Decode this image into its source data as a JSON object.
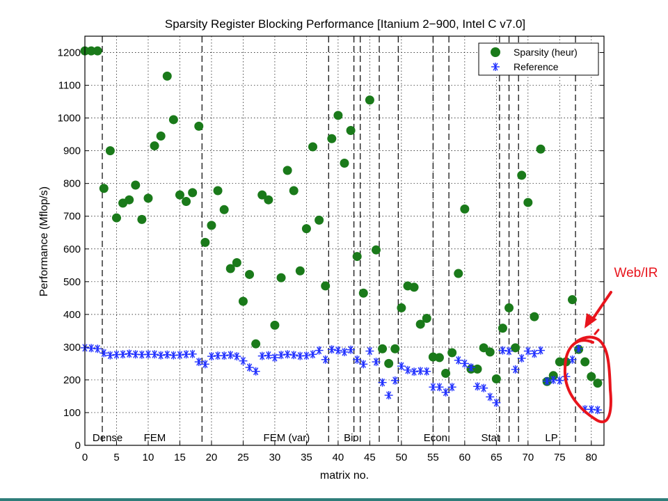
{
  "chart_data": {
    "type": "scatter",
    "title": "Sparsity Register Blocking Performance [Itanium 2−900, Intel C v7.0]",
    "xlabel": "matrix no.",
    "ylabel": "Performance (Mflop/s)",
    "xlim": [
      0,
      82
    ],
    "ylim": [
      0,
      1250
    ],
    "xticks": [
      0,
      5,
      10,
      15,
      20,
      25,
      30,
      35,
      40,
      45,
      50,
      55,
      60,
      65,
      70,
      75,
      80
    ],
    "yticks": [
      0,
      100,
      200,
      300,
      400,
      500,
      600,
      700,
      800,
      900,
      1000,
      1100,
      1200
    ],
    "grid": true,
    "legend_position": "top-right",
    "colors": {
      "sparsity": "#1a7a1a",
      "reference": "#1f2fff",
      "annotation": "#e8141c"
    },
    "series": [
      {
        "name": "Sparsity (heur)",
        "marker": "circle",
        "x": [
          0,
          1,
          2,
          3,
          4,
          5,
          6,
          7,
          8,
          9,
          10,
          11,
          12,
          13,
          14,
          15,
          16,
          17,
          18,
          19,
          20,
          21,
          22,
          23,
          24,
          25,
          26,
          27,
          28,
          29,
          30,
          31,
          32,
          33,
          34,
          35,
          36,
          37,
          38,
          39,
          40,
          41,
          42,
          43,
          44,
          45,
          46,
          47,
          48,
          49,
          50,
          51,
          52,
          53,
          54,
          55,
          56,
          57,
          58,
          59,
          60,
          61,
          62,
          63,
          64,
          65,
          66,
          67,
          68,
          69,
          70,
          71,
          72,
          73,
          74,
          75,
          76,
          77,
          78,
          79,
          80,
          81
        ],
        "values": [
          1205,
          1205,
          1205,
          785,
          900,
          695,
          740,
          750,
          795,
          690,
          755,
          915,
          945,
          1128,
          995,
          765,
          745,
          772,
          975,
          620,
          672,
          778,
          720,
          540,
          558,
          440,
          522,
          310,
          765,
          750,
          367,
          512,
          840,
          778,
          533,
          662,
          912,
          688,
          487,
          937,
          1008,
          862,
          962,
          577,
          465,
          1055,
          597,
          295,
          250,
          295,
          420,
          487,
          483,
          370,
          388,
          270,
          268,
          220,
          283,
          525,
          722,
          233,
          233,
          298,
          285,
          203,
          358,
          420,
          298,
          825,
          742,
          393,
          905,
          195,
          213,
          255,
          255,
          445,
          293,
          255,
          210,
          190
        ]
      },
      {
        "name": "Reference",
        "marker": "asterisk",
        "x": [
          0,
          1,
          2,
          3,
          4,
          5,
          6,
          7,
          8,
          9,
          10,
          11,
          12,
          13,
          14,
          15,
          16,
          17,
          18,
          19,
          20,
          21,
          22,
          23,
          24,
          25,
          26,
          27,
          28,
          29,
          30,
          31,
          32,
          33,
          34,
          35,
          36,
          37,
          38,
          39,
          40,
          41,
          42,
          43,
          44,
          45,
          46,
          47,
          48,
          49,
          50,
          51,
          52,
          53,
          54,
          55,
          56,
          57,
          58,
          59,
          60,
          61,
          62,
          63,
          64,
          65,
          66,
          67,
          68,
          69,
          70,
          71,
          72,
          73,
          74,
          75,
          76,
          77,
          78,
          79,
          80,
          81
        ],
        "values": [
          298,
          297,
          295,
          282,
          275,
          277,
          278,
          280,
          278,
          277,
          278,
          278,
          275,
          277,
          275,
          276,
          278,
          279,
          255,
          248,
          272,
          274,
          274,
          276,
          272,
          258,
          238,
          226,
          273,
          275,
          268,
          276,
          278,
          276,
          273,
          274,
          278,
          290,
          262,
          293,
          290,
          285,
          292,
          262,
          248,
          288,
          255,
          192,
          153,
          198,
          242,
          230,
          225,
          227,
          226,
          178,
          178,
          162,
          178,
          260,
          250,
          238,
          180,
          175,
          148,
          130,
          290,
          288,
          232,
          266,
          288,
          280,
          290,
          196,
          200,
          198,
          210,
          262,
          295,
          110,
          110,
          108
        ]
      }
    ],
    "regions": {
      "boundaries": [
        2.75,
        18.5,
        38.5,
        42.5,
        43.5,
        46.5,
        49.5,
        55,
        57.5,
        65.5,
        67,
        68.5,
        77.5
      ],
      "labels": [
        {
          "text": "Dense",
          "x": 1.2
        },
        {
          "text": "FEM",
          "x": 9.3
        },
        {
          "text": "FEM (var)",
          "x": 28.2
        },
        {
          "text": "Bio",
          "x": 40.9
        },
        {
          "text": "Econ",
          "x": 53.5
        },
        {
          "text": "Stat",
          "x": 62.6
        },
        {
          "text": "LP",
          "x": 72.7
        }
      ]
    },
    "annotation": {
      "text": "Web/IR"
    }
  }
}
